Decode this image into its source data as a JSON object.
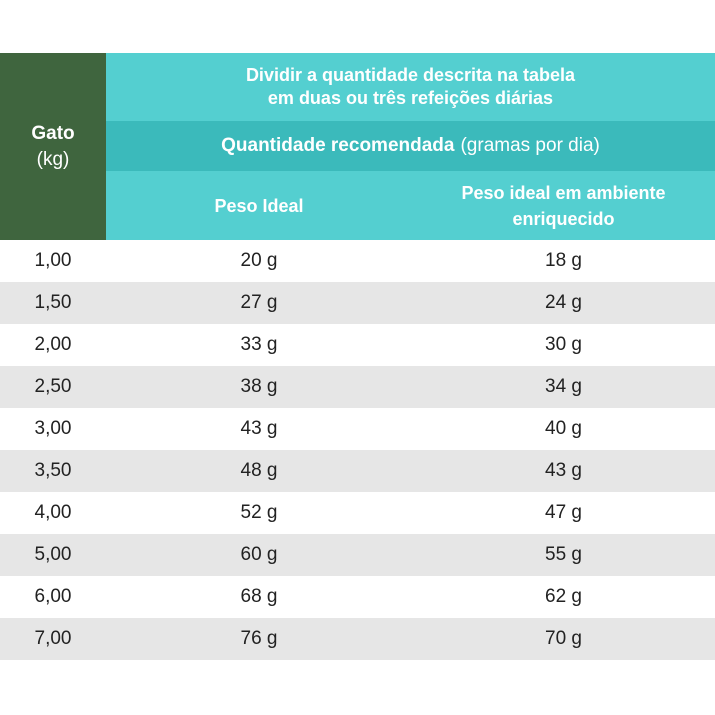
{
  "header": {
    "gato_label": "Gato",
    "gato_unit": "(kg)",
    "instruction_line1": "Dividir a quantidade descrita na tabela",
    "instruction_line2": "em duas ou três refeições diárias",
    "quantity_title": "Quantidade recomendada",
    "quantity_unit": "(gramas por dia)",
    "col_ideal": "Peso Ideal",
    "col_enriched_line1": "Peso ideal em ambiente",
    "col_enriched_line2": "enriquecido"
  },
  "rows": [
    {
      "weight": "1,00",
      "ideal": "20 g",
      "enriched": "18 g"
    },
    {
      "weight": "1,50",
      "ideal": "27 g",
      "enriched": "24 g"
    },
    {
      "weight": "2,00",
      "ideal": "33 g",
      "enriched": "30 g"
    },
    {
      "weight": "2,50",
      "ideal": "38 g",
      "enriched": "34 g"
    },
    {
      "weight": "3,00",
      "ideal": "43 g",
      "enriched": "40 g"
    },
    {
      "weight": "3,50",
      "ideal": "48 g",
      "enriched": "43 g"
    },
    {
      "weight": "4,00",
      "ideal": "52 g",
      "enriched": "47 g"
    },
    {
      "weight": "5,00",
      "ideal": "60 g",
      "enriched": "55 g"
    },
    {
      "weight": "6,00",
      "ideal": "68 g",
      "enriched": "62 g"
    },
    {
      "weight": "7,00",
      "ideal": "76 g",
      "enriched": "70 g"
    }
  ],
  "colors": {
    "gato_header_bg": "#3f653e",
    "teal_light": "#54cfd0",
    "teal_dark": "#3bbabb",
    "row_alt_bg": "#e6e6e6"
  }
}
